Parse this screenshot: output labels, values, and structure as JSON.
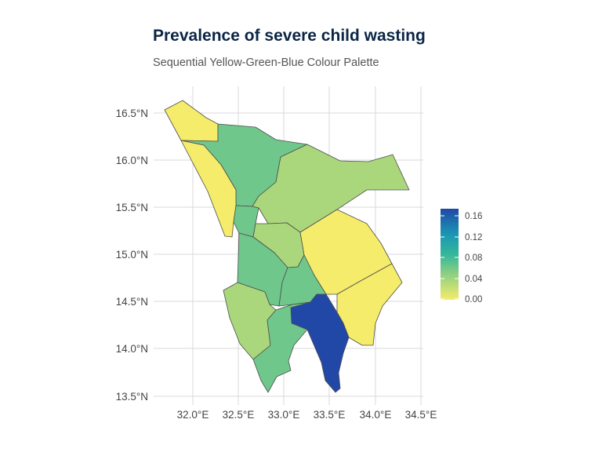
{
  "title": "Prevalence of severe child wasting",
  "subtitle": "Sequential Yellow-Green-Blue Colour Palette",
  "axes": {
    "x_ticks": [
      "32.0°E",
      "32.5°E",
      "33.0°E",
      "33.5°E",
      "34.0°E",
      "34.5°E"
    ],
    "y_ticks": [
      "13.5°N",
      "14.0°N",
      "14.5°N",
      "15.0°N",
      "15.5°N",
      "16.0°N",
      "16.5°N"
    ]
  },
  "legend": {
    "ticks": [
      "0.16",
      "0.12",
      "0.08",
      "0.04",
      "0.00"
    ],
    "color_stops": [
      "#f5ec6b",
      "#9ad37f",
      "#35b69b",
      "#1a97b4",
      "#2148a6"
    ]
  },
  "chart_data": {
    "type": "heatmap",
    "title": "Prevalence of severe child wasting",
    "subtitle": "Sequential Yellow-Green-Blue Colour Palette",
    "x_range": [
      31.6,
      34.5
    ],
    "y_range": [
      13.42,
      16.72
    ],
    "color_scale": {
      "min": 0.0,
      "max": 0.17,
      "palette": "Yellow-Green-Blue"
    },
    "grid": true,
    "legend_position": "right",
    "regions": [
      {
        "id": "north-west-strip",
        "value": 0.0
      },
      {
        "id": "north-central",
        "value": 0.06
      },
      {
        "id": "north-east",
        "value": 0.035
      },
      {
        "id": "west-strip",
        "value": 0.0
      },
      {
        "id": "central-small",
        "value": 0.06
      },
      {
        "id": "central-green",
        "value": 0.035
      },
      {
        "id": "east-north",
        "value": 0.0
      },
      {
        "id": "east-south",
        "value": 0.0
      },
      {
        "id": "mid-west",
        "value": 0.06
      },
      {
        "id": "mid-east",
        "value": 0.06
      },
      {
        "id": "south-west",
        "value": 0.035
      },
      {
        "id": "south-central",
        "value": 0.06
      },
      {
        "id": "south-east",
        "value": 0.17
      }
    ]
  }
}
